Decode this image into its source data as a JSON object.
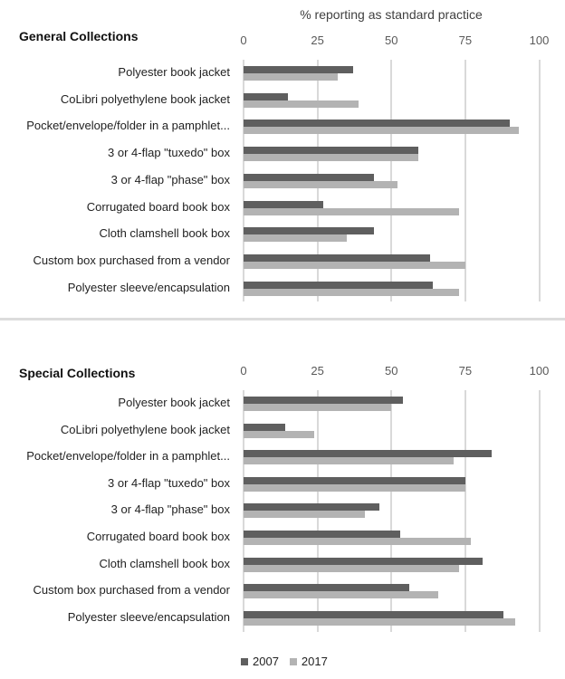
{
  "chart_data": [
    {
      "type": "bar",
      "orientation": "horizontal",
      "title": "General Collections",
      "xlabel": "% reporting as standard practice",
      "ylabel": "",
      "xlim": [
        0,
        100
      ],
      "x_ticks": [
        "0",
        "25",
        "50",
        "75",
        "100"
      ],
      "grid": true,
      "legend_position": "bottom",
      "categories": [
        "Polyester book jacket",
        "CoLibri polyethylene book jacket",
        "Pocket/envelope/folder in a pamphlet...",
        "3 or 4-flap \"tuxedo\" box",
        "3 or 4-flap \"phase\" box",
        "Corrugated board book box",
        "Cloth clamshell book box",
        "Custom box purchased from a vendor",
        "Polyester sleeve/encapsulation"
      ],
      "series": [
        {
          "name": "2007",
          "color": "#5f5f5f",
          "values": [
            37,
            15,
            90,
            59,
            44,
            27,
            44,
            63,
            64
          ]
        },
        {
          "name": "2017",
          "color": "#b3b3b3",
          "values": [
            32,
            39,
            93,
            59,
            52,
            73,
            35,
            75,
            73
          ]
        }
      ]
    },
    {
      "type": "bar",
      "orientation": "horizontal",
      "title": "Special Collections",
      "xlabel": "% reporting as standard practice",
      "ylabel": "",
      "xlim": [
        0,
        100
      ],
      "x_ticks": [
        "0",
        "25",
        "50",
        "75",
        "100"
      ],
      "grid": true,
      "legend_position": "bottom",
      "categories": [
        "Polyester book jacket",
        "CoLibri polyethylene book jacket",
        "Pocket/envelope/folder in a pamphlet...",
        "3 or 4-flap \"tuxedo\" box",
        "3 or 4-flap \"phase\" box",
        "Corrugated board book box",
        "Cloth clamshell book box",
        "Custom box purchased from a vendor",
        "Polyester sleeve/encapsulation"
      ],
      "series": [
        {
          "name": "2007",
          "color": "#5f5f5f",
          "values": [
            54,
            14,
            84,
            75,
            46,
            53,
            81,
            56,
            88
          ]
        },
        {
          "name": "2017",
          "color": "#b3b3b3",
          "values": [
            50,
            24,
            71,
            75,
            41,
            77,
            73,
            66,
            92
          ]
        }
      ]
    }
  ],
  "axis_title": "% reporting as standard practice",
  "legend": [
    {
      "label": "2007",
      "color": "#5f5f5f"
    },
    {
      "label": "2017",
      "color": "#b3b3b3"
    }
  ]
}
